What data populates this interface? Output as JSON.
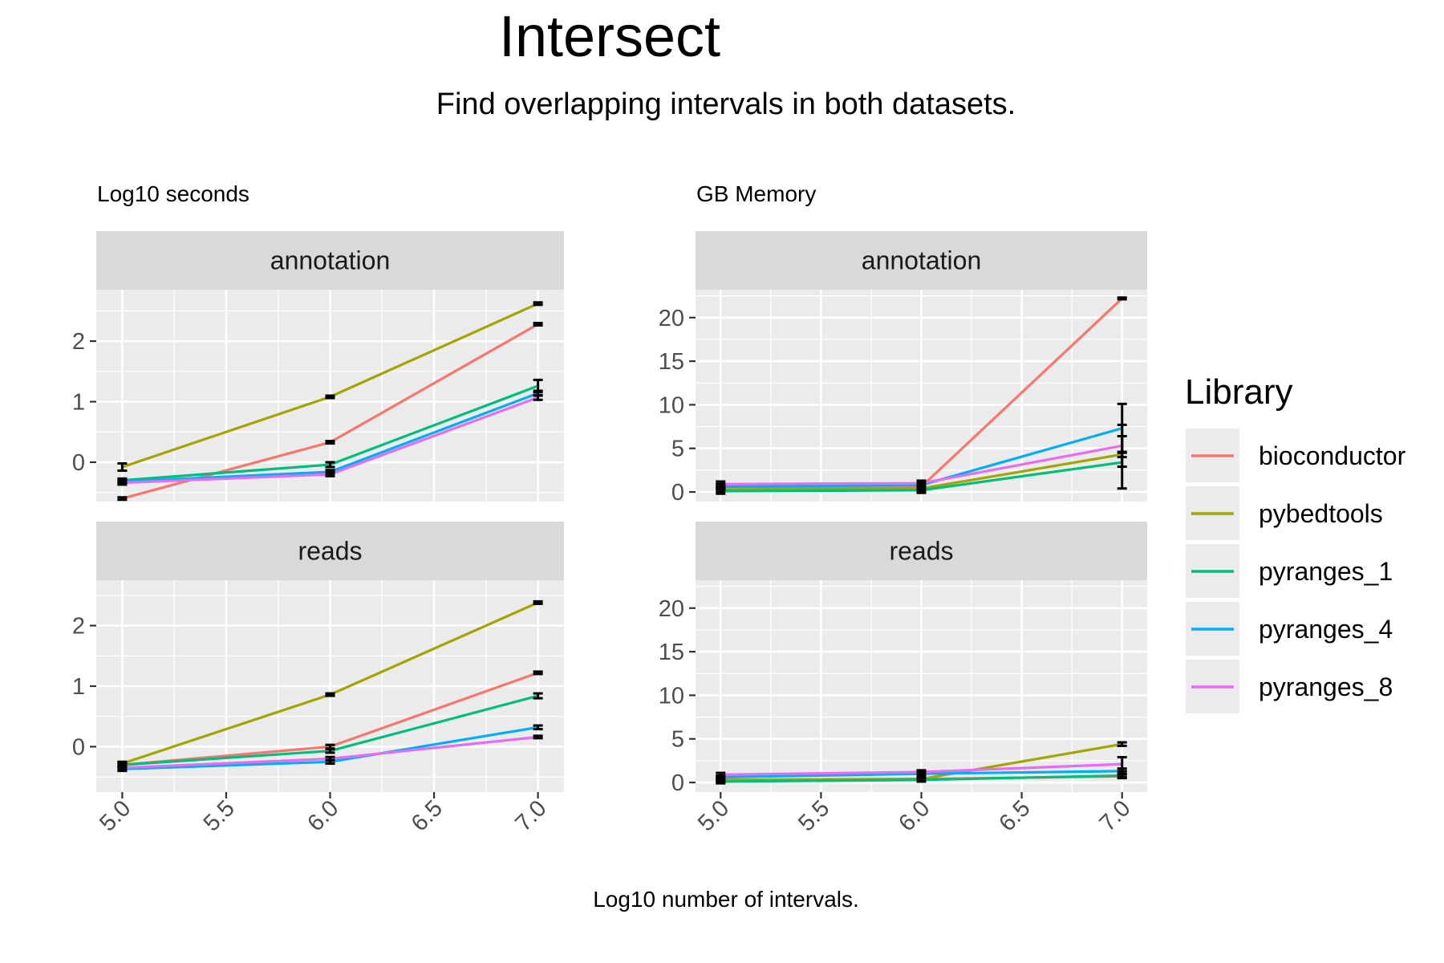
{
  "title": "Intersect",
  "subtitle": "Find overlapping intervals in both datasets.",
  "xlabel": "Log10 number of intervals.",
  "legend": {
    "title": "Library",
    "entries": [
      {
        "name": "bioconductor",
        "color": "#F8766D"
      },
      {
        "name": "pybedtools",
        "color": "#A3A500"
      },
      {
        "name": "pyranges_1",
        "color": "#00BF7D"
      },
      {
        "name": "pyranges_4",
        "color": "#00B0F6"
      },
      {
        "name": "pyranges_8",
        "color": "#E76BF3"
      }
    ]
  },
  "chart_data": [
    {
      "type": "line",
      "label": "Log10 seconds",
      "facet": "annotation",
      "x": [
        5,
        6,
        7
      ],
      "xticks": [
        "5.0",
        "5.5",
        "6.0",
        "6.5",
        "7.0"
      ],
      "yticks": [
        "0",
        "1",
        "2"
      ],
      "ylim": [
        -0.65,
        2.85
      ],
      "series": [
        {
          "name": "bioconductor",
          "values": [
            -0.6,
            0.33,
            2.28
          ],
          "err": [
            0.02,
            0.02,
            0.02
          ]
        },
        {
          "name": "pybedtools",
          "values": [
            -0.08,
            1.08,
            2.62
          ],
          "err": [
            0.06,
            0.02,
            0.02
          ]
        },
        {
          "name": "pyranges_1",
          "values": [
            -0.3,
            -0.04,
            1.26
          ],
          "err": [
            0.03,
            0.04,
            0.1
          ]
        },
        {
          "name": "pyranges_4",
          "values": [
            -0.32,
            -0.16,
            1.14
          ],
          "err": [
            0.03,
            0.03,
            0.04
          ]
        },
        {
          "name": "pyranges_8",
          "values": [
            -0.34,
            -0.2,
            1.07
          ],
          "err": [
            0.03,
            0.03,
            0.04
          ]
        }
      ]
    },
    {
      "type": "line",
      "label": "Log10 seconds",
      "facet": "reads",
      "x": [
        5,
        6,
        7
      ],
      "xticks": [
        "5.0",
        "5.5",
        "6.0",
        "6.5",
        "7.0"
      ],
      "yticks": [
        "0",
        "1",
        "2"
      ],
      "ylim": [
        -0.75,
        2.75
      ],
      "series": [
        {
          "name": "bioconductor",
          "values": [
            -0.3,
            0.0,
            1.22
          ],
          "err": [
            0.03,
            0.03,
            0.02
          ]
        },
        {
          "name": "pybedtools",
          "values": [
            -0.28,
            0.86,
            2.38
          ],
          "err": [
            0.03,
            0.02,
            0.02
          ]
        },
        {
          "name": "pyranges_1",
          "values": [
            -0.3,
            -0.07,
            0.84
          ],
          "err": [
            0.03,
            0.03,
            0.04
          ]
        },
        {
          "name": "pyranges_4",
          "values": [
            -0.37,
            -0.25,
            0.32
          ],
          "err": [
            0.03,
            0.03,
            0.03
          ]
        },
        {
          "name": "pyranges_8",
          "values": [
            -0.35,
            -0.2,
            0.16
          ],
          "err": [
            0.03,
            0.03,
            0.02
          ]
        }
      ]
    },
    {
      "type": "line",
      "label": "GB Memory",
      "facet": "annotation",
      "x": [
        5,
        6,
        7
      ],
      "xticks": [
        "5.0",
        "5.5",
        "6.0",
        "6.5",
        "7.0"
      ],
      "yticks": [
        "0",
        "5",
        "10",
        "15",
        "20"
      ],
      "ylim": [
        -1.1,
        23.2
      ],
      "series": [
        {
          "name": "bioconductor",
          "values": [
            0.6,
            0.6,
            22.2
          ],
          "err": [
            0.3,
            0.3,
            0.1
          ]
        },
        {
          "name": "pybedtools",
          "values": [
            0.3,
            0.4,
            4.3
          ],
          "err": [
            0.3,
            0.3,
            0.3
          ]
        },
        {
          "name": "pyranges_1",
          "values": [
            0.1,
            0.2,
            3.4
          ],
          "err": [
            0.3,
            0.3,
            3.0
          ]
        },
        {
          "name": "pyranges_4",
          "values": [
            0.6,
            0.8,
            7.3
          ],
          "err": [
            0.3,
            0.3,
            2.8
          ]
        },
        {
          "name": "pyranges_8",
          "values": [
            0.9,
            1.0,
            5.3
          ],
          "err": [
            0.3,
            0.3,
            2.4
          ]
        }
      ]
    },
    {
      "type": "line",
      "label": "GB Memory",
      "facet": "reads",
      "x": [
        5,
        6,
        7
      ],
      "xticks": [
        "5.0",
        "5.5",
        "6.0",
        "6.5",
        "7.0"
      ],
      "yticks": [
        "0",
        "5",
        "10",
        "15",
        "20"
      ],
      "ylim": [
        -1.1,
        23.2
      ],
      "series": [
        {
          "name": "bioconductor",
          "values": [
            0.3,
            0.4,
            0.7
          ],
          "err": [
            0.2,
            0.2,
            0.2
          ]
        },
        {
          "name": "pybedtools",
          "values": [
            0.3,
            0.4,
            4.4
          ],
          "err": [
            0.2,
            0.2,
            0.2
          ]
        },
        {
          "name": "pyranges_1",
          "values": [
            0.1,
            0.3,
            0.8
          ],
          "err": [
            0.2,
            0.2,
            0.2
          ]
        },
        {
          "name": "pyranges_4",
          "values": [
            0.6,
            1.0,
            1.3
          ],
          "err": [
            0.2,
            0.2,
            0.3
          ]
        },
        {
          "name": "pyranges_8",
          "values": [
            0.9,
            1.2,
            2.1
          ],
          "err": [
            0.2,
            0.2,
            0.8
          ]
        }
      ]
    }
  ]
}
